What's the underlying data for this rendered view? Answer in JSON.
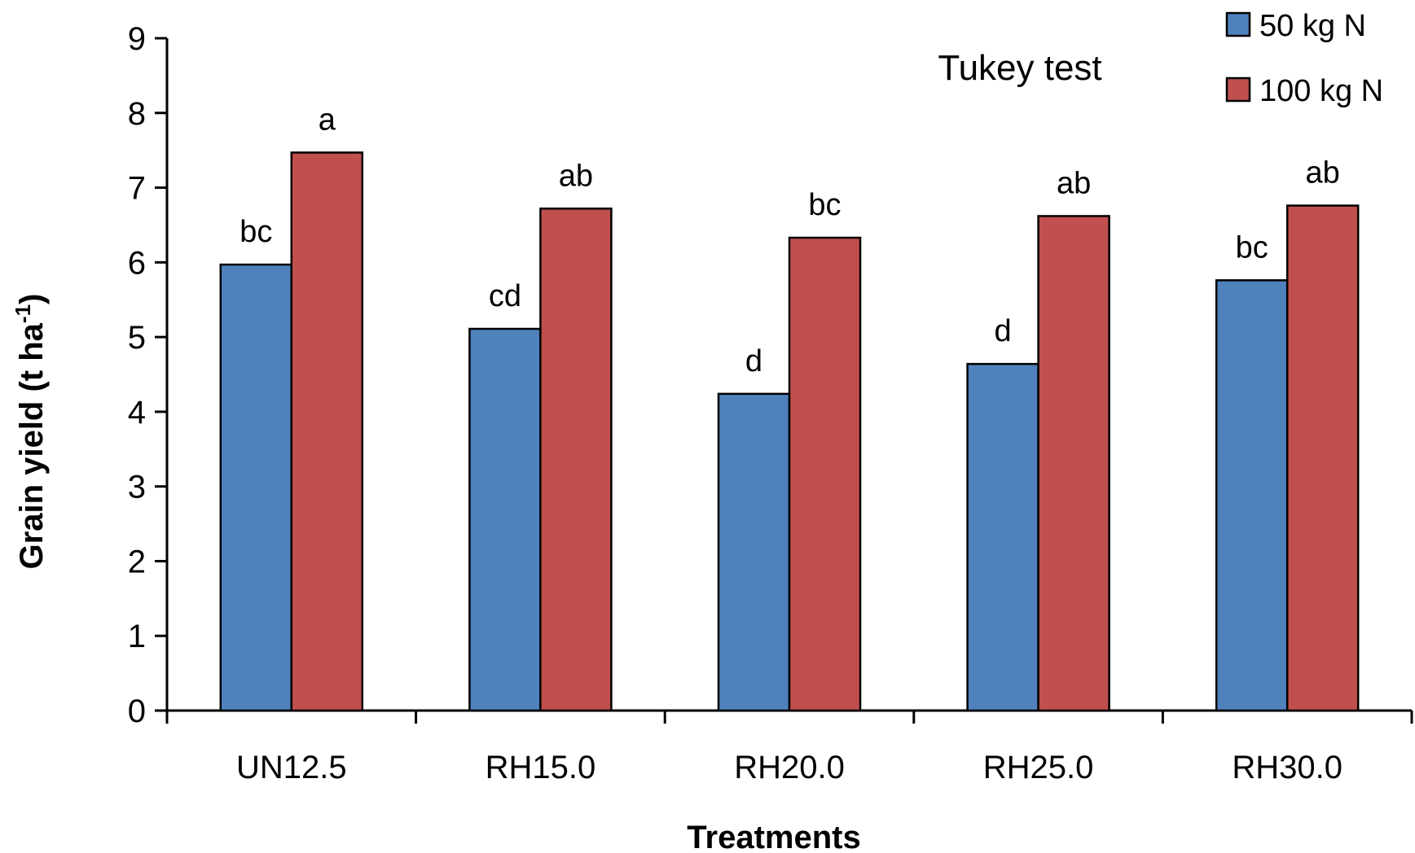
{
  "chart_data": {
    "type": "bar",
    "categories": [
      "UN12.5",
      "RH15.0",
      "RH20.0",
      "RH25.0",
      "RH30.0"
    ],
    "series": [
      {
        "name": "50 kg N",
        "color": "#4F81BD",
        "values": [
          5.97,
          5.11,
          4.24,
          4.64,
          5.76
        ],
        "labels": [
          "bc",
          "cd",
          "d",
          "d",
          "bc"
        ]
      },
      {
        "name": "100 kg N",
        "color": "#C0504D",
        "values": [
          7.47,
          6.72,
          6.33,
          6.62,
          6.76
        ],
        "labels": [
          "a",
          "ab",
          "bc",
          "ab",
          "ab"
        ]
      }
    ],
    "xlabel": "Treatments",
    "ylabel_main": "Grain yield (t ha",
    "ylabel_sup": "-1",
    "ylabel_end": ")",
    "ylim": [
      0,
      9
    ],
    "yticks": [
      0,
      1,
      2,
      3,
      4,
      5,
      6,
      7,
      8,
      9
    ],
    "annotation": "Tukey test",
    "legend_position": "top-right",
    "grid": false
  }
}
